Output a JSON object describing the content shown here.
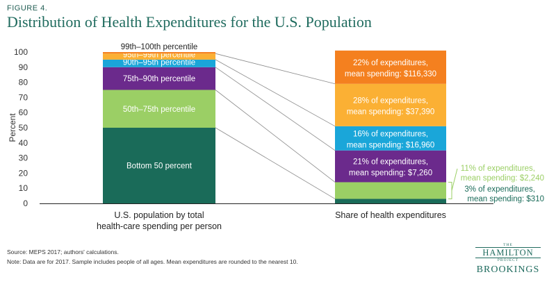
{
  "figure_label": "FIGURE 4.",
  "title": "Distribution of Health Expenditures for the U.S. Population",
  "notes": {
    "source": "Source: MEPS 2017; authors' calculations.",
    "note": "Note: Data are for 2017. Sample includes people of all ages. Mean expenditures are rounded to the nearest 10."
  },
  "logo": {
    "the": "THE",
    "hamilton": "HAMILTON",
    "project": "PROJECT",
    "brookings": "BROOKINGS"
  },
  "colors": {
    "dark_green": "#1a6b59",
    "light_green": "#9bcf65",
    "purple": "#6b2a8c",
    "blue": "#1aa6d9",
    "orange_light": "#fbb034",
    "orange": "#f4801f",
    "connector": "#8a8a8a",
    "axis": "#333333"
  },
  "chart_data": {
    "type": "bar",
    "stacked": true,
    "ylabel": "Percent",
    "ylim": [
      0,
      100
    ],
    "yticks": [
      0,
      10,
      20,
      30,
      40,
      50,
      60,
      70,
      80,
      90,
      100
    ],
    "categories": [
      "U.S. population by total health-care spending per person",
      "Share of health expenditures"
    ],
    "category_labels": [
      [
        "U.S. population by total",
        "health-care spending per person"
      ],
      [
        "Share of health expenditures"
      ]
    ],
    "population": [
      {
        "label": "Bottom 50 percent",
        "value": 50,
        "color": "#1a6b59",
        "text_color": "#ffffff",
        "label_position": "inside"
      },
      {
        "label": "50th–75th percentile",
        "value": 25,
        "color": "#9bcf65",
        "text_color": "#ffffff",
        "label_position": "inside"
      },
      {
        "label": "75th–90th percentile",
        "value": 15,
        "color": "#6b2a8c",
        "text_color": "#ffffff",
        "label_position": "inside"
      },
      {
        "label": "90th–95th percentile",
        "value": 5,
        "color": "#1aa6d9",
        "text_color": "#ffffff",
        "label_position": "inside"
      },
      {
        "label": "95th–99th percentile",
        "value": 4,
        "color": "#fbb034",
        "text_color": "#ffffff",
        "label_position": "inside"
      },
      {
        "label": "99th–100th percentile",
        "value": 1,
        "color": "#f4801f",
        "text_color": "#222222",
        "label_position": "above"
      }
    ],
    "expenditures": [
      {
        "value": 3,
        "color": "#1a6b59",
        "line1": "3% of expenditures,",
        "line2": "mean spending: $310",
        "text_color": "#1a6b59",
        "label_position": "outside"
      },
      {
        "value": 11,
        "color": "#9bcf65",
        "line1": "11% of expenditures,",
        "line2": "mean spending: $2,240",
        "text_color": "#9bcf65",
        "label_position": "outside"
      },
      {
        "value": 21,
        "color": "#6b2a8c",
        "line1": "21% of expenditures,",
        "line2": "mean spending: $7,260",
        "text_color": "#ffffff",
        "label_position": "inside"
      },
      {
        "value": 16,
        "color": "#1aa6d9",
        "line1": "16% of expenditures,",
        "line2": "mean spending: $16,960",
        "text_color": "#ffffff",
        "label_position": "inside"
      },
      {
        "value": 28,
        "color": "#fbb034",
        "line1": "28% of expenditures,",
        "line2": "mean spending: $37,390",
        "text_color": "#ffffff",
        "label_position": "inside"
      },
      {
        "value": 22,
        "color": "#f4801f",
        "line1": "22% of expenditures,",
        "line2": "mean spending: $116,330",
        "text_color": "#ffffff",
        "label_position": "inside"
      }
    ]
  }
}
